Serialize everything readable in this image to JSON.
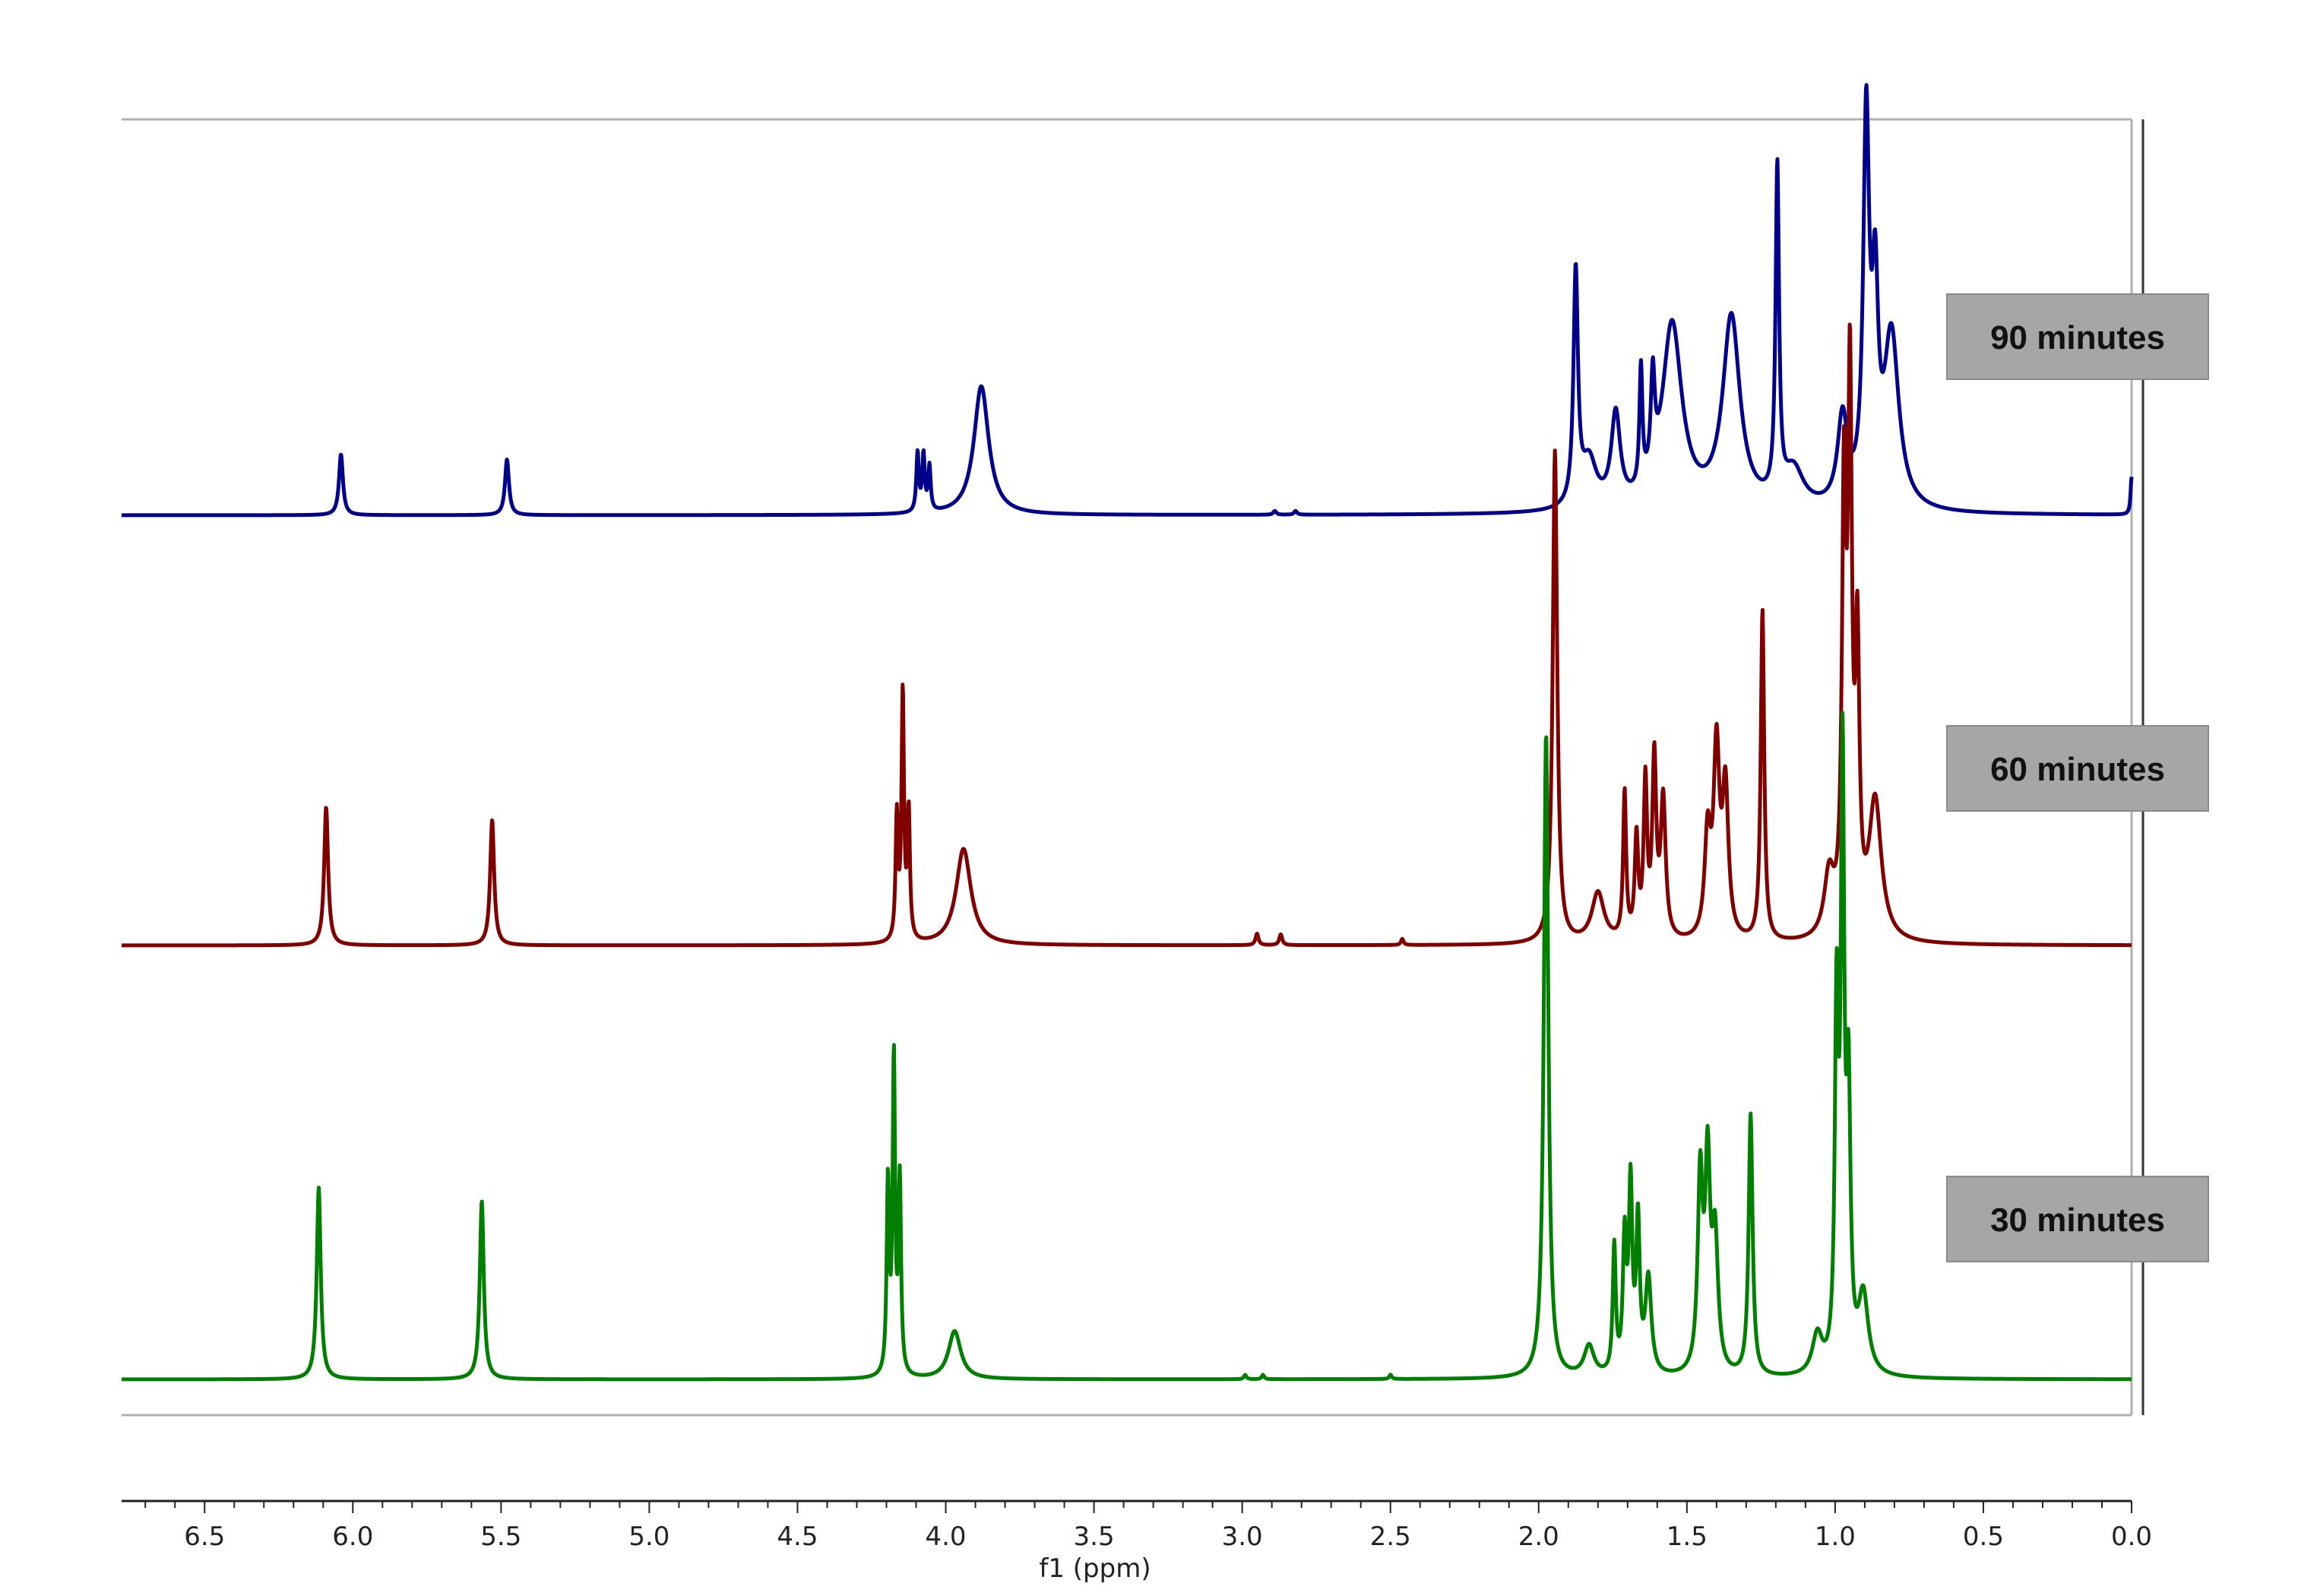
{
  "chart_data": {
    "type": "line",
    "title": "",
    "xlabel": "f1 (ppm)",
    "ylabel": "",
    "x_reversed": true,
    "xlim": [
      6.78,
      0.0
    ],
    "x_ticks": [
      "6.5",
      "6.0",
      "5.5",
      "5.0",
      "4.5",
      "4.0",
      "3.5",
      "3.0",
      "2.5",
      "2.0",
      "1.5",
      "1.0",
      "0.5",
      "0.0"
    ],
    "x_tick_values": [
      6.5,
      6.0,
      5.5,
      5.0,
      4.5,
      4.0,
      3.5,
      3.0,
      2.5,
      2.0,
      1.5,
      1.0,
      0.5,
      0.0
    ],
    "grid": false,
    "legend_placement": "right",
    "series": [
      {
        "name": "90 minutes",
        "color": "#00008b",
        "peaks": [
          {
            "ppm": 6.04,
            "height": 0.097,
            "width": 0.008
          },
          {
            "ppm": 5.48,
            "height": 0.089,
            "width": 0.008
          },
          {
            "ppm": 4.095,
            "height": 0.094,
            "width": 0.005
          },
          {
            "ppm": 4.075,
            "height": 0.09,
            "width": 0.005
          },
          {
            "ppm": 4.055,
            "height": 0.071,
            "width": 0.005
          },
          {
            "ppm": 3.88,
            "height": 0.205,
            "width": 0.03
          },
          {
            "ppm": 2.89,
            "height": 0.006,
            "width": 0.006
          },
          {
            "ppm": 2.82,
            "height": 0.006,
            "width": 0.006
          },
          {
            "ppm": 1.875,
            "height": 0.37,
            "width": 0.009
          },
          {
            "ppm": 1.83,
            "height": 0.075,
            "width": 0.03
          },
          {
            "ppm": 1.74,
            "height": 0.145,
            "width": 0.018
          },
          {
            "ppm": 1.655,
            "height": 0.19,
            "width": 0.006
          },
          {
            "ppm": 1.615,
            "height": 0.155,
            "width": 0.008
          },
          {
            "ppm": 1.55,
            "height": 0.295,
            "width": 0.04
          },
          {
            "ppm": 1.35,
            "height": 0.305,
            "width": 0.035
          },
          {
            "ppm": 1.195,
            "height": 0.525,
            "width": 0.007
          },
          {
            "ppm": 1.14,
            "height": 0.06,
            "width": 0.04
          },
          {
            "ppm": 0.975,
            "height": 0.14,
            "width": 0.02
          },
          {
            "ppm": 0.895,
            "height": 0.6,
            "width": 0.012
          },
          {
            "ppm": 0.865,
            "height": 0.3,
            "width": 0.012
          },
          {
            "ppm": 0.81,
            "height": 0.275,
            "width": 0.03
          },
          {
            "ppm": 0.0,
            "height": 0.06,
            "width": 0.004
          }
        ]
      },
      {
        "name": "60 minutes",
        "color": "#800000",
        "peaks": [
          {
            "ppm": 6.09,
            "height": 0.18,
            "width": 0.008
          },
          {
            "ppm": 5.53,
            "height": 0.163,
            "width": 0.008
          },
          {
            "ppm": 4.165,
            "height": 0.16,
            "width": 0.005
          },
          {
            "ppm": 4.145,
            "height": 0.32,
            "width": 0.005
          },
          {
            "ppm": 4.125,
            "height": 0.165,
            "width": 0.005
          },
          {
            "ppm": 3.94,
            "height": 0.125,
            "width": 0.03
          },
          {
            "ppm": 2.95,
            "height": 0.015,
            "width": 0.006
          },
          {
            "ppm": 2.87,
            "height": 0.014,
            "width": 0.006
          },
          {
            "ppm": 2.46,
            "height": 0.008,
            "width": 0.005
          },
          {
            "ppm": 1.945,
            "height": 0.64,
            "width": 0.009
          },
          {
            "ppm": 1.8,
            "height": 0.065,
            "width": 0.025
          },
          {
            "ppm": 1.71,
            "height": 0.19,
            "width": 0.006
          },
          {
            "ppm": 1.67,
            "height": 0.13,
            "width": 0.007
          },
          {
            "ppm": 1.64,
            "height": 0.2,
            "width": 0.007
          },
          {
            "ppm": 1.61,
            "height": 0.23,
            "width": 0.008
          },
          {
            "ppm": 1.58,
            "height": 0.18,
            "width": 0.01
          },
          {
            "ppm": 1.43,
            "height": 0.13,
            "width": 0.012
          },
          {
            "ppm": 1.4,
            "height": 0.24,
            "width": 0.012
          },
          {
            "ppm": 1.37,
            "height": 0.19,
            "width": 0.012
          },
          {
            "ppm": 1.245,
            "height": 0.43,
            "width": 0.007
          },
          {
            "ppm": 1.02,
            "height": 0.08,
            "width": 0.02
          },
          {
            "ppm": 0.97,
            "height": 0.55,
            "width": 0.008
          },
          {
            "ppm": 0.95,
            "height": 0.68,
            "width": 0.008
          },
          {
            "ppm": 0.925,
            "height": 0.35,
            "width": 0.008
          },
          {
            "ppm": 0.865,
            "height": 0.18,
            "width": 0.025
          }
        ]
      },
      {
        "name": "30 minutes",
        "color": "#007f00",
        "peaks": [
          {
            "ppm": 6.115,
            "height": 0.22,
            "width": 0.008
          },
          {
            "ppm": 5.565,
            "height": 0.205,
            "width": 0.008
          },
          {
            "ppm": 4.195,
            "height": 0.22,
            "width": 0.005
          },
          {
            "ppm": 4.175,
            "height": 0.36,
            "width": 0.005
          },
          {
            "ppm": 4.155,
            "height": 0.22,
            "width": 0.005
          },
          {
            "ppm": 3.97,
            "height": 0.055,
            "width": 0.025
          },
          {
            "ppm": 2.99,
            "height": 0.005,
            "width": 0.005
          },
          {
            "ppm": 2.93,
            "height": 0.005,
            "width": 0.005
          },
          {
            "ppm": 2.5,
            "height": 0.005,
            "width": 0.005
          },
          {
            "ppm": 1.975,
            "height": 0.74,
            "width": 0.009
          },
          {
            "ppm": 1.83,
            "height": 0.035,
            "width": 0.02
          },
          {
            "ppm": 1.745,
            "height": 0.145,
            "width": 0.006
          },
          {
            "ppm": 1.71,
            "height": 0.15,
            "width": 0.007
          },
          {
            "ppm": 1.69,
            "height": 0.21,
            "width": 0.007
          },
          {
            "ppm": 1.665,
            "height": 0.17,
            "width": 0.007
          },
          {
            "ppm": 1.63,
            "height": 0.11,
            "width": 0.012
          },
          {
            "ppm": 1.455,
            "height": 0.22,
            "width": 0.01
          },
          {
            "ppm": 1.43,
            "height": 0.23,
            "width": 0.01
          },
          {
            "ppm": 1.405,
            "height": 0.15,
            "width": 0.012
          },
          {
            "ppm": 1.285,
            "height": 0.3,
            "width": 0.008
          },
          {
            "ppm": 1.06,
            "height": 0.045,
            "width": 0.02
          },
          {
            "ppm": 0.995,
            "height": 0.4,
            "width": 0.007
          },
          {
            "ppm": 0.975,
            "height": 0.67,
            "width": 0.007
          },
          {
            "ppm": 0.955,
            "height": 0.3,
            "width": 0.008
          },
          {
            "ppm": 0.905,
            "height": 0.09,
            "width": 0.02
          }
        ]
      }
    ]
  }
}
